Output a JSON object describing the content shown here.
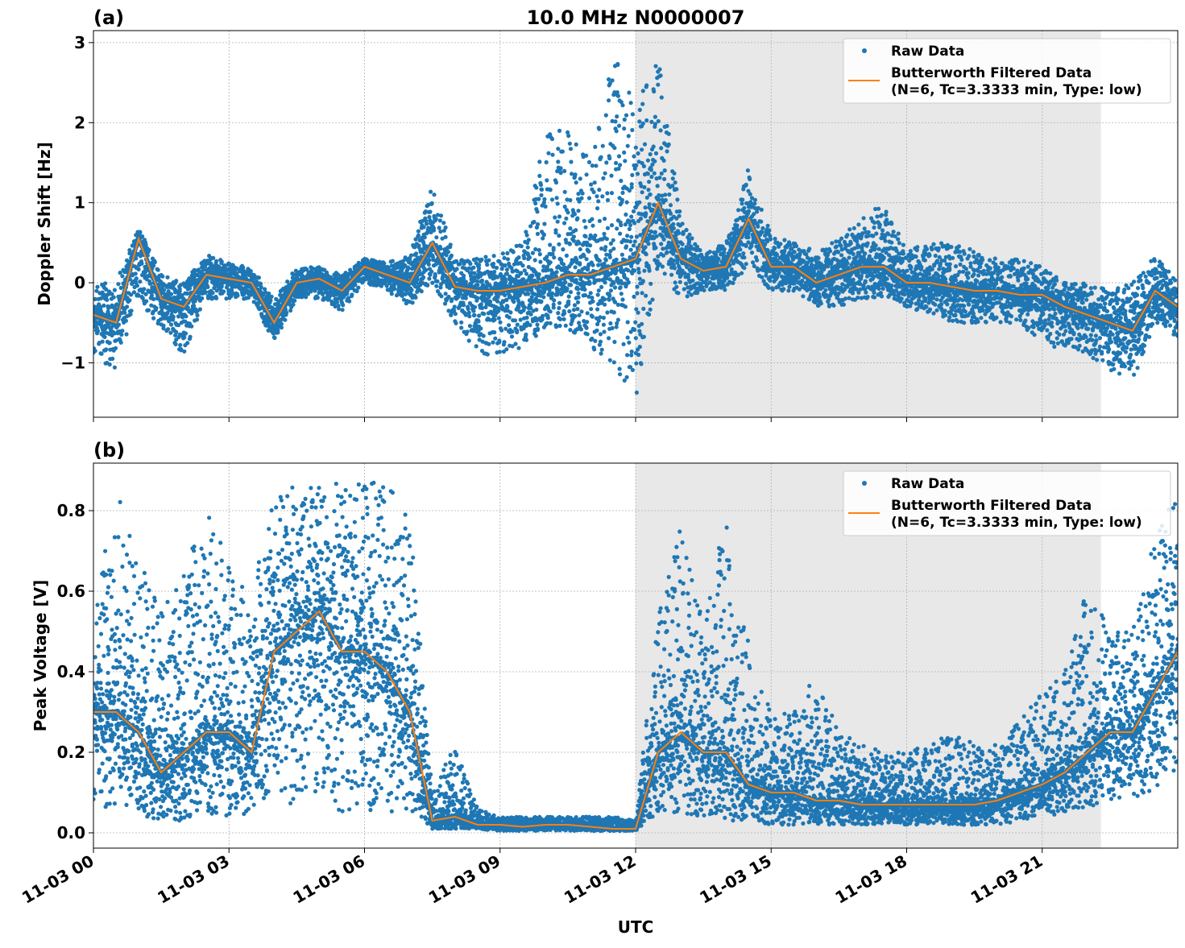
{
  "chart_data": [
    {
      "type": "scatter",
      "panel_label": "(a)",
      "title": "10.0 MHz N0000007",
      "xlabel": "",
      "ylabel": "Doppler Shift [Hz]",
      "x_unit": "hours UTC since 11-03 00",
      "xlim": [
        0,
        24
      ],
      "ylim": [
        -1.68,
        3.15
      ],
      "yticks": [
        -1,
        0,
        1,
        2,
        3
      ],
      "ytick_labels": [
        "−1",
        "0",
        "1",
        "2",
        "3"
      ],
      "grid": true,
      "legend_position": "top-right",
      "shaded_interval": [
        12,
        22.3
      ],
      "x": [
        0,
        0.5,
        1,
        1.5,
        2,
        2.5,
        3,
        3.5,
        4,
        4.5,
        5,
        5.5,
        6,
        6.5,
        7,
        7.5,
        8,
        8.5,
        9,
        9.5,
        10,
        10.5,
        11,
        11.5,
        12,
        12.5,
        13,
        13.5,
        14,
        14.5,
        15,
        15.5,
        16,
        16.5,
        17,
        17.5,
        18,
        18.5,
        19,
        19.5,
        20,
        20.5,
        21,
        21.5,
        22,
        22.5,
        23,
        23.5,
        24
      ],
      "series": [
        {
          "name": "Raw Data",
          "kind": "points",
          "color": "#1f77b4",
          "low": [
            -0.9,
            -1.1,
            -0.2,
            -0.6,
            -0.9,
            -0.2,
            -0.2,
            -0.2,
            -0.75,
            -0.2,
            -0.2,
            -0.35,
            0.0,
            -0.1,
            -0.3,
            0.0,
            -0.5,
            -0.9,
            -0.9,
            -0.8,
            -0.6,
            -0.6,
            -0.8,
            -1.0,
            -1.5,
            0.2,
            -0.2,
            -0.1,
            -0.1,
            0.2,
            -0.1,
            -0.1,
            -0.3,
            -0.3,
            -0.2,
            -0.2,
            -0.3,
            -0.4,
            -0.5,
            -0.5,
            -0.5,
            -0.5,
            -0.8,
            -0.8,
            -0.9,
            -1.1,
            -1.25,
            -0.5,
            -0.7
          ],
          "high": [
            0.0,
            0.0,
            0.7,
            0.1,
            0.0,
            0.35,
            0.25,
            0.2,
            -0.2,
            0.2,
            0.2,
            0.1,
            0.3,
            0.25,
            0.35,
            1.25,
            0.3,
            0.3,
            0.4,
            0.5,
            1.9,
            2.0,
            1.5,
            2.9,
            2.2,
            2.9,
            0.8,
            0.4,
            0.5,
            1.45,
            0.6,
            0.5,
            0.4,
            0.55,
            0.8,
            1.0,
            0.4,
            0.5,
            0.5,
            0.4,
            0.3,
            0.3,
            0.2,
            0.0,
            0.0,
            -0.1,
            0.0,
            0.35,
            0.0
          ]
        },
        {
          "name": "Butterworth Filtered Data\n(N=6, Tc=3.3333 min, Type: low)",
          "kind": "line",
          "color": "#ff7f0e",
          "values": [
            -0.4,
            -0.5,
            0.55,
            -0.2,
            -0.3,
            0.1,
            0.05,
            0.0,
            -0.5,
            0.0,
            0.05,
            -0.1,
            0.2,
            0.1,
            0.0,
            0.5,
            -0.05,
            -0.1,
            -0.1,
            -0.05,
            0.0,
            0.1,
            0.1,
            0.2,
            0.3,
            1.0,
            0.3,
            0.15,
            0.2,
            0.8,
            0.2,
            0.2,
            0.0,
            0.1,
            0.2,
            0.2,
            0.0,
            0.0,
            -0.05,
            -0.1,
            -0.1,
            -0.15,
            -0.15,
            -0.3,
            -0.4,
            -0.5,
            -0.6,
            -0.1,
            -0.3
          ]
        }
      ]
    },
    {
      "type": "scatter",
      "panel_label": "(b)",
      "title": "",
      "xlabel": "UTC",
      "ylabel": "Peak Voltage [V]",
      "x_unit": "hours UTC since 11-03 00",
      "xlim": [
        0,
        24
      ],
      "ylim": [
        -0.038,
        0.918
      ],
      "yticks": [
        0.0,
        0.2,
        0.4,
        0.6,
        0.8
      ],
      "ytick_labels": [
        "0.0",
        "0.2",
        "0.4",
        "0.6",
        "0.8"
      ],
      "xticks": [
        0,
        3,
        6,
        9,
        12,
        15,
        18,
        21
      ],
      "xtick_labels": [
        "11-03 00",
        "11-03 03",
        "11-03 06",
        "11-03 09",
        "11-03 12",
        "11-03 15",
        "11-03 18",
        "11-03 21"
      ],
      "grid": true,
      "legend_position": "top-right",
      "shaded_interval": [
        12,
        22.3
      ],
      "x": [
        0,
        0.5,
        1,
        1.5,
        2,
        2.5,
        3,
        3.5,
        4,
        4.5,
        5,
        5.5,
        6,
        6.5,
        7,
        7.5,
        8,
        8.5,
        9,
        9.5,
        10,
        10.5,
        11,
        11.5,
        12,
        12.5,
        13,
        13.5,
        14,
        14.5,
        15,
        15.5,
        16,
        16.5,
        17,
        17.5,
        18,
        18.5,
        19,
        19.5,
        20,
        20.5,
        21,
        21.5,
        22,
        22.5,
        23,
        23.5,
        24
      ],
      "series": [
        {
          "name": "Raw Data",
          "kind": "points",
          "color": "#1f77b4",
          "low": [
            0.07,
            0.06,
            0.05,
            0.02,
            0.03,
            0.05,
            0.04,
            0.05,
            0.1,
            0.05,
            0.1,
            0.05,
            0.05,
            0.05,
            0.05,
            0.01,
            0.01,
            0.01,
            0.005,
            0.005,
            0.005,
            0.005,
            0.005,
            0.005,
            0.005,
            0.05,
            0.05,
            0.04,
            0.03,
            0.03,
            0.02,
            0.02,
            0.02,
            0.02,
            0.02,
            0.02,
            0.02,
            0.02,
            0.02,
            0.02,
            0.02,
            0.03,
            0.04,
            0.05,
            0.06,
            0.08,
            0.08,
            0.1,
            0.15
          ],
          "high": [
            0.55,
            0.85,
            0.7,
            0.55,
            0.65,
            0.8,
            0.68,
            0.6,
            0.86,
            0.87,
            0.87,
            0.87,
            0.87,
            0.87,
            0.8,
            0.1,
            0.22,
            0.06,
            0.04,
            0.04,
            0.04,
            0.04,
            0.04,
            0.04,
            0.03,
            0.55,
            0.77,
            0.6,
            0.79,
            0.48,
            0.3,
            0.3,
            0.4,
            0.25,
            0.22,
            0.2,
            0.2,
            0.22,
            0.25,
            0.22,
            0.22,
            0.28,
            0.35,
            0.4,
            0.62,
            0.5,
            0.5,
            0.75,
            0.84
          ]
        },
        {
          "name": "Butterworth Filtered Data\n(N=6, Tc=3.3333 min, Type: low)",
          "kind": "line",
          "color": "#ff7f0e",
          "values": [
            0.3,
            0.3,
            0.25,
            0.15,
            0.2,
            0.25,
            0.25,
            0.2,
            0.45,
            0.5,
            0.55,
            0.45,
            0.45,
            0.4,
            0.3,
            0.03,
            0.04,
            0.02,
            0.02,
            0.015,
            0.02,
            0.02,
            0.015,
            0.01,
            0.01,
            0.2,
            0.25,
            0.2,
            0.2,
            0.12,
            0.1,
            0.1,
            0.08,
            0.08,
            0.07,
            0.07,
            0.07,
            0.07,
            0.07,
            0.07,
            0.08,
            0.1,
            0.12,
            0.15,
            0.2,
            0.25,
            0.25,
            0.35,
            0.45
          ]
        }
      ]
    }
  ],
  "legend": {
    "raw_label": "Raw Data",
    "filtered_line1": "Butterworth Filtered Data",
    "filtered_line2": "(N=6, Tc=3.3333 min, Type: low)"
  },
  "colors": {
    "raw": "#1f77b4",
    "filtered": "#ff7f0e",
    "shade": "#e8e8e8",
    "grid": "#b0b0b0"
  }
}
